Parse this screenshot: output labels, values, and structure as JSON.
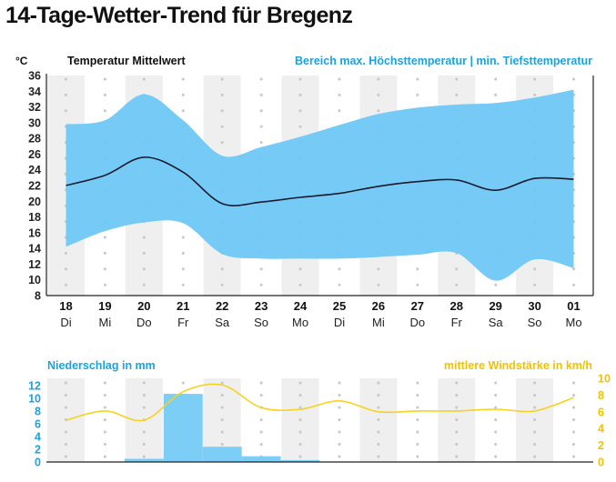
{
  "title": "14-Tage-Wetter-Trend für Bregenz",
  "colors": {
    "range_fill": "#6ec8f5",
    "mean_line": "#1a1a2e",
    "precip_bar": "#7ccef7",
    "wind_line": "#f7d21e",
    "precip_label": "#1aa3df",
    "wind_label": "#f2c200",
    "column_shade": "#efefef",
    "dot": "#c8c8c8",
    "axis": "#222222"
  },
  "chart_data": [
    {
      "type": "area",
      "ylabel": "°C",
      "legend_left": "Temperatur Mittelwert",
      "legend_right": "Bereich max. Höchsttemperatur | min. Tiefsttemperatur",
      "ylim": [
        8,
        36
      ],
      "yticks": [
        8,
        10,
        12,
        14,
        16,
        18,
        20,
        22,
        24,
        26,
        28,
        30,
        32,
        34,
        36
      ],
      "grid": "alternating column shading with dotted lines",
      "categories": [
        {
          "day": "18",
          "weekday": "Di"
        },
        {
          "day": "19",
          "weekday": "Mi"
        },
        {
          "day": "20",
          "weekday": "Do"
        },
        {
          "day": "21",
          "weekday": "Fr"
        },
        {
          "day": "22",
          "weekday": "Sa"
        },
        {
          "day": "23",
          "weekday": "So"
        },
        {
          "day": "24",
          "weekday": "Mo"
        },
        {
          "day": "25",
          "weekday": "Di"
        },
        {
          "day": "26",
          "weekday": "Mi"
        },
        {
          "day": "27",
          "weekday": "Do"
        },
        {
          "day": "28",
          "weekday": "Fr"
        },
        {
          "day": "29",
          "weekday": "Sa"
        },
        {
          "day": "30",
          "weekday": "So"
        },
        {
          "day": "01",
          "weekday": "Mo"
        }
      ],
      "series": [
        {
          "name": "Temperatur Mittelwert",
          "values": [
            22.0,
            23.3,
            25.6,
            23.7,
            19.7,
            19.9,
            20.5,
            21.0,
            21.9,
            22.5,
            22.7,
            21.4,
            22.9,
            22.8
          ]
        },
        {
          "name": "Höchsttemperatur",
          "values": [
            29.8,
            30.3,
            33.6,
            30.3,
            25.8,
            26.9,
            28.2,
            29.7,
            31.1,
            31.9,
            32.3,
            32.5,
            33.2,
            34.2
          ]
        },
        {
          "name": "Tiefsttemperatur",
          "values": [
            14.2,
            16.2,
            17.3,
            17.2,
            13.3,
            12.7,
            12.7,
            12.7,
            12.9,
            13.2,
            13.4,
            9.9,
            12.6,
            11.5
          ]
        }
      ]
    },
    {
      "type": "bar",
      "legend_left": "Niederschlag in mm",
      "legend_right": "mittlere Windstärke in km/h",
      "categories": [
        "18",
        "19",
        "20",
        "21",
        "22",
        "23",
        "24",
        "25",
        "26",
        "27",
        "28",
        "29",
        "30",
        "01"
      ],
      "ylim_left": [
        0,
        12
      ],
      "yticks_left": [
        0,
        2,
        4,
        6,
        8,
        10,
        12
      ],
      "ylim_right": [
        0,
        10
      ],
      "yticks_right": [
        0,
        2,
        4,
        6,
        8,
        10
      ],
      "series": [
        {
          "name": "Niederschlag in mm",
          "type": "bar",
          "axis": "left",
          "values": [
            0,
            0,
            0.5,
            10.7,
            2.4,
            0.9,
            0.3,
            0,
            0,
            0,
            0.1,
            0.1,
            0.1,
            0
          ]
        },
        {
          "name": "mittlere Windstärke in km/h",
          "type": "line",
          "axis": "right",
          "values": [
            5.0,
            6.1,
            5.0,
            8.4,
            9.2,
            6.5,
            6.3,
            7.3,
            6.0,
            6.1,
            6.1,
            6.3,
            6.1,
            7.7
          ]
        }
      ]
    }
  ]
}
